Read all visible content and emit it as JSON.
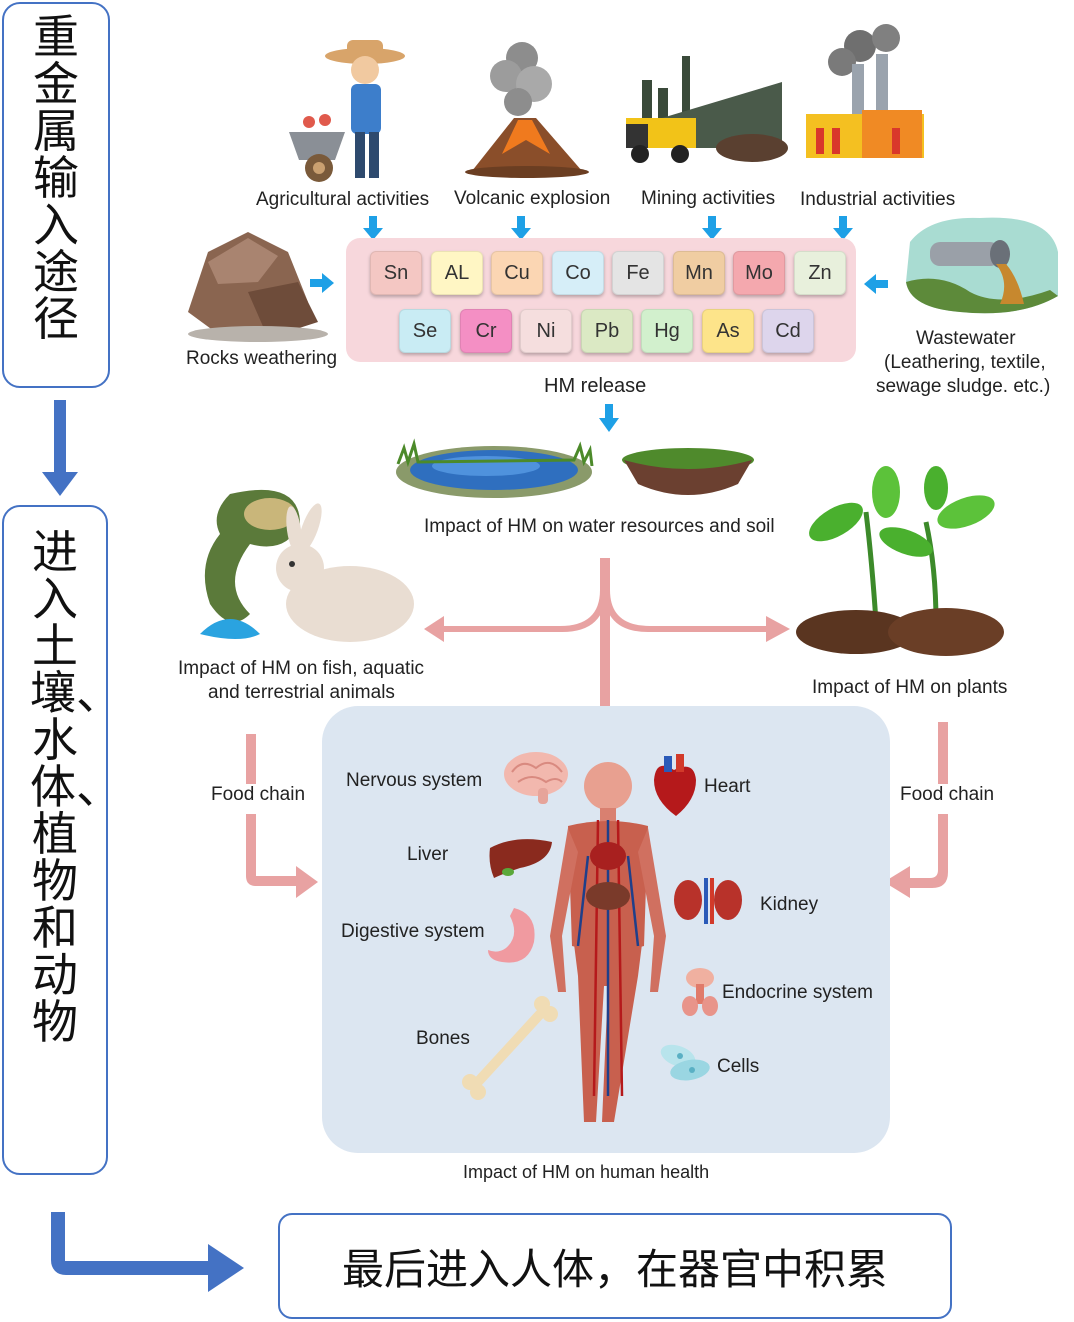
{
  "side": {
    "input_paths": "重金属输入途径",
    "enter": "进入土壤、水体、植物和动物"
  },
  "final": "最后进入人体，在器官中积累",
  "sources": {
    "agricultural": "Agricultural activities",
    "volcanic": "Volcanic explosion",
    "mining": "Mining activities",
    "industrial": "Industrial activities",
    "rocks": "Rocks weathering",
    "wastewater_1": "Wastewater",
    "wastewater_2": "(Leathering, textile,",
    "wastewater_3": "sewage sludge. etc.)"
  },
  "elements": [
    {
      "symbol": "Sn",
      "color": "#f4c7c3"
    },
    {
      "symbol": "AL",
      "color": "#fff6c4"
    },
    {
      "symbol": "Cu",
      "color": "#fbd6b3"
    },
    {
      "symbol": "Co",
      "color": "#d6eef8"
    },
    {
      "symbol": "Fe",
      "color": "#e4e4e4"
    },
    {
      "symbol": "Mn",
      "color": "#f0cda2"
    },
    {
      "symbol": "Mo",
      "color": "#f4a8ae"
    },
    {
      "symbol": "Zn",
      "color": "#e8f0dc"
    },
    {
      "symbol": "Se",
      "color": "#c9ecf4"
    },
    {
      "symbol": "Cr",
      "color": "#f48fc4"
    },
    {
      "symbol": "Ni",
      "color": "#f5dede"
    },
    {
      "symbol": "Pb",
      "color": "#dbe9c4"
    },
    {
      "symbol": "Hg",
      "color": "#d2f0cd"
    },
    {
      "symbol": "As",
      "color": "#fde48a"
    },
    {
      "symbol": "Cd",
      "color": "#ddd5ec"
    }
  ],
  "hm_release": "HM release",
  "impacts": {
    "water_soil": "Impact of HM on water resources and soil",
    "animals_1": "Impact of HM on fish, aquatic",
    "animals_2": "and terrestrial animals",
    "plants": "Impact of HM on plants",
    "human": "Impact of HM on human health"
  },
  "food_chain_left": "Food chain",
  "food_chain_right": "Food chain",
  "organs": {
    "nervous": "Nervous system",
    "heart": "Heart",
    "liver": "Liver",
    "kidney": "Kidney",
    "digestive": "Digestive system",
    "endocrine": "Endocrine system",
    "bones": "Bones",
    "cells": "Cells"
  },
  "colors": {
    "blue_border": "#4472c4",
    "blue_arrow": "#1ea0e6",
    "pink_arrow": "#e8a2a2",
    "element_panel": "#f7d7dc",
    "human_panel": "#dce6f1"
  }
}
